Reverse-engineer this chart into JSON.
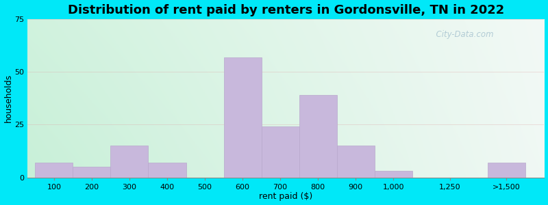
{
  "title": "Distribution of rent paid by renters in Gordonsville, TN in 2022",
  "xlabel": "rent paid ($)",
  "ylabel": "households",
  "tick_labels": [
    "100",
    "200",
    "300",
    "400",
    "500",
    "600",
    "700",
    "800",
    "900",
    "1,000",
    "1,250",
    ">1,500"
  ],
  "bar_lefts": [
    0,
    1,
    2,
    3,
    4,
    5,
    6,
    7,
    8,
    9,
    10.5,
    12
  ],
  "bar_widths": [
    1,
    1,
    1,
    1,
    1,
    1,
    1,
    1,
    1,
    1,
    1,
    1
  ],
  "values": [
    7,
    5,
    15,
    7,
    0,
    57,
    24,
    39,
    15,
    3,
    0,
    7
  ],
  "tick_positions": [
    0.5,
    1.5,
    2.5,
    3.5,
    4.5,
    5.5,
    6.5,
    7.5,
    8.5,
    9.5,
    11,
    12.5
  ],
  "bar_color": "#c8b8dc",
  "bar_edge_color": "#b8a8cc",
  "ylim": [
    0,
    75
  ],
  "xlim": [
    -0.2,
    13.5
  ],
  "yticks": [
    0,
    25,
    50,
    75
  ],
  "bg_left_color": "#c8f0d8",
  "bg_right_color": "#f0f8f8",
  "outer_bg_color": "#00e8f8",
  "watermark": "  City-Data.com",
  "title_fontsize": 13,
  "axis_label_fontsize": 9,
  "tick_fontsize": 8
}
